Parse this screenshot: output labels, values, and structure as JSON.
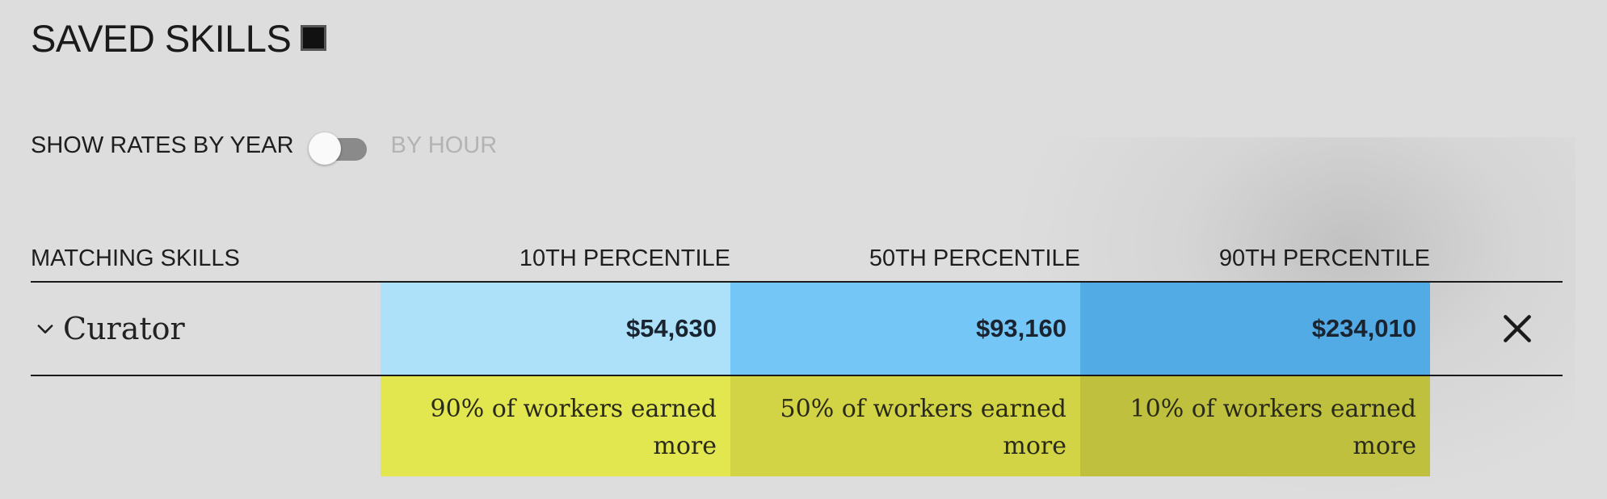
{
  "page": {
    "title": "SAVED SKILLS"
  },
  "rates_toggle": {
    "label": "SHOW RATES BY YEAR",
    "alt_label": "BY HOUR",
    "state": "off"
  },
  "table": {
    "headers": {
      "skill": "MATCHING SKILLS",
      "p10": "10TH PERCENTILE",
      "p50": "50TH PERCENTILE",
      "p90": "90TH PERCENTILE"
    },
    "rows": [
      {
        "skill": "Curator",
        "p10": "$54,630",
        "p50": "$93,160",
        "p90": "$234,010"
      }
    ],
    "notes": {
      "p10": "90% of workers earned more",
      "p50": "50% of workers earned more",
      "p90": "10% of workers earned more"
    }
  },
  "colors": {
    "background": "#dddddd",
    "p10_fill": "#ade1fa",
    "p50_fill": "#74c6f7",
    "p90_fill": "#53abe5",
    "note_p10_fill": "#e3e74f",
    "note_p50_fill": "#d2d445",
    "note_p90_fill": "#bfc13e"
  },
  "icons": {
    "title_square": "square-icon",
    "expand": "chevron-down-icon",
    "remove": "close-icon"
  }
}
